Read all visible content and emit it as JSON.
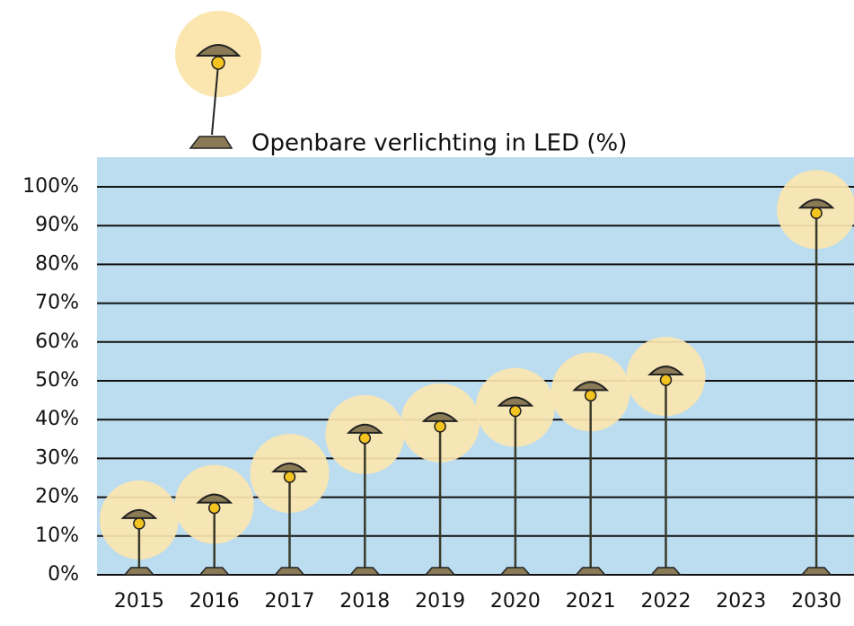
{
  "chart_data": {
    "type": "bar",
    "title": "Openbare verlichting in LED (%)",
    "categories": [
      "2015",
      "2016",
      "2017",
      "2018",
      "2019",
      "2020",
      "2021",
      "2022",
      "2023",
      "2030"
    ],
    "values": [
      16,
      20,
      28,
      38,
      41,
      45,
      49,
      53,
      null,
      96
    ],
    "color": "#3a3a2a",
    "ylim": [
      0,
      100
    ],
    "yticks": [
      {
        "value": 0,
        "label": "0%"
      },
      {
        "value": 10,
        "label": "10%"
      },
      {
        "value": 20,
        "label": "20%"
      },
      {
        "value": 30,
        "label": "30%"
      },
      {
        "value": 40,
        "label": "40%"
      },
      {
        "value": 50,
        "label": "50%"
      },
      {
        "value": 60,
        "label": "60%"
      },
      {
        "value": 70,
        "label": "70%"
      },
      {
        "value": 80,
        "label": "80%"
      },
      {
        "value": 90,
        "label": "90%"
      },
      {
        "value": 100,
        "label": "100%"
      }
    ],
    "grid": true
  }
}
